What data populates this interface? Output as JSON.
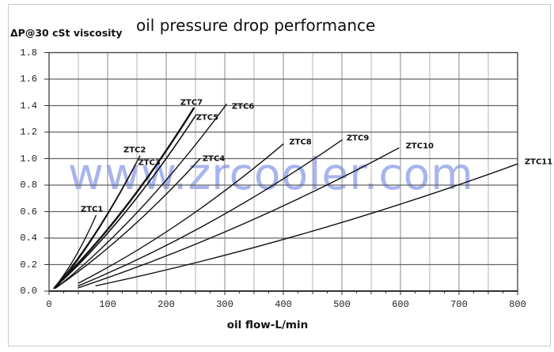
{
  "frame": {
    "border_color": "#c9c9c9"
  },
  "chart_data": {
    "type": "line",
    "title": "oil pressure drop performance",
    "xlabel": "oil flow-L/min",
    "ylabel": "ΔP@30 cSt viscosity",
    "watermark": "www.zrcooler.com",
    "xlim": [
      0,
      800
    ],
    "ylim": [
      0,
      1.8
    ],
    "x_ticks": [
      0,
      100,
      200,
      300,
      400,
      500,
      600,
      700,
      800
    ],
    "x_tick_labels": [
      "0",
      "100",
      "200",
      "300",
      "400",
      "500",
      "600",
      "700",
      "800"
    ],
    "y_ticks": [
      0,
      0.2,
      0.4,
      0.6,
      0.8,
      1.0,
      1.2,
      1.4,
      1.6,
      1.8
    ],
    "y_tick_labels": [
      "0.0",
      "0.2",
      "0.4",
      "0.6",
      "0.8",
      "1.0",
      "1.2",
      "1.4",
      "1.6",
      "1.8"
    ],
    "x_grid_minor_step": 50,
    "x_grid_major_step": 100,
    "x_axis_tick_step": 25,
    "grid": "on",
    "legend": "inline-labels",
    "colors": {
      "curve": "#111111",
      "grid_vertical_minor": "#b3b3b3",
      "grid_vertical_major": "#8a8a8a",
      "grid_horizontal": "#636363",
      "plot_border": "#4a4a4a",
      "axis_tick": "#333333",
      "watermark": "#92a2ea",
      "text": "#111111"
    },
    "series": [
      {
        "name": "ZTC1",
        "points": [
          [
            8,
            0.02
          ],
          [
            45,
            0.26
          ],
          [
            80,
            0.57
          ]
        ],
        "label_at": [
          54,
          0.615
        ],
        "width": 1.4
      },
      {
        "name": "ZTC2",
        "points": [
          [
            10,
            0.03
          ],
          [
            82,
            0.46
          ],
          [
            155,
            1.02
          ]
        ],
        "label_at": [
          127,
          1.06
        ],
        "width": 1.4
      },
      {
        "name": "ZTC3",
        "points": [
          [
            12,
            0.025
          ],
          [
            79,
            0.43
          ],
          [
            147,
            0.95
          ]
        ],
        "label_at": [
          152,
          0.97
        ],
        "width": 1.4
      },
      {
        "name": "ZTC4",
        "points": [
          [
            10,
            0.02
          ],
          [
            133,
            0.45
          ],
          [
            258,
            1.0
          ]
        ],
        "label_at": [
          262,
          1.0
        ],
        "width": 1.4
      },
      {
        "name": "ZTC5",
        "points": [
          [
            12,
            0.035
          ],
          [
            131,
            0.6
          ],
          [
            251,
            1.33
          ]
        ],
        "label_at": [
          251,
          1.31
        ],
        "width": 1.6
      },
      {
        "name": "ZTC6",
        "points": [
          [
            14,
            0.03
          ],
          [
            158,
            0.63
          ],
          [
            303,
            1.41
          ]
        ],
        "label_at": [
          312,
          1.39
        ],
        "width": 1.4
      },
      {
        "name": "ZTC7",
        "points": [
          [
            10,
            0.03
          ],
          [
            128,
            0.62
          ],
          [
            247,
            1.38
          ]
        ],
        "label_at": [
          224,
          1.42
        ],
        "width": 2.4
      },
      {
        "name": "ZTC8",
        "points": [
          [
            50,
            0.06
          ],
          [
            225,
            0.52
          ],
          [
            400,
            1.11
          ]
        ],
        "label_at": [
          410,
          1.12
        ],
        "width": 1.4
      },
      {
        "name": "ZTC9",
        "points": [
          [
            50,
            0.04
          ],
          [
            275,
            0.52
          ],
          [
            500,
            1.14
          ]
        ],
        "label_at": [
          508,
          1.15
        ],
        "width": 1.4
      },
      {
        "name": "ZTC10",
        "points": [
          [
            50,
            0.025
          ],
          [
            323,
            0.49
          ],
          [
            597,
            1.08
          ]
        ],
        "label_at": [
          609,
          1.09
        ],
        "width": 1.4
      },
      {
        "name": "ZTC11",
        "points": [
          [
            80,
            0.04
          ],
          [
            440,
            0.44
          ],
          [
            800,
            0.96
          ]
        ],
        "label_at": [
          812,
          0.975
        ],
        "width": 1.4
      }
    ]
  }
}
